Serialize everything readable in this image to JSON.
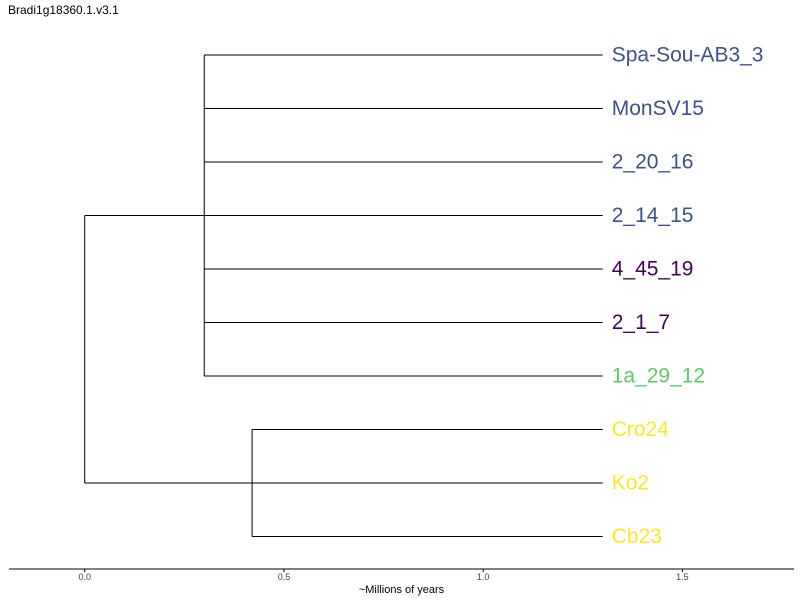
{
  "title": "Bradi1g18360.1.v3.1",
  "tree": {
    "tips": [
      {
        "name": "Spa-Sou-AB3_3",
        "color": "#3b528b"
      },
      {
        "name": "MonSV15",
        "color": "#3b528b"
      },
      {
        "name": "2_20_16",
        "color": "#3b528b"
      },
      {
        "name": "2_14_15",
        "color": "#3b528b"
      },
      {
        "name": "4_45_19",
        "color": "#440154"
      },
      {
        "name": "2_1_7",
        "color": "#440154"
      },
      {
        "name": "1a_29_12",
        "color": "#5ec962"
      },
      {
        "name": "Cro24",
        "color": "#fde725"
      },
      {
        "name": "Ko2",
        "color": "#fde725"
      },
      {
        "name": "Cb23",
        "color": "#fde725"
      }
    ],
    "root_age": 0.0,
    "tip_age": 1.3,
    "clades": [
      {
        "members": [
          0,
          1,
          2,
          3,
          4,
          5,
          6
        ],
        "node_age": 0.3
      },
      {
        "members": [
          7,
          9
        ],
        "node_age": 0.42
      }
    ],
    "root_joins": [
      "clade0",
      "clade1",
      "tip8"
    ]
  },
  "axis": {
    "ticks": [
      {
        "value": 0.0,
        "label": "0.0"
      },
      {
        "value": 0.5,
        "label": "0.5"
      },
      {
        "value": 1.0,
        "label": "1.0"
      },
      {
        "value": 1.5,
        "label": "1.5"
      }
    ],
    "title": "~Millions of years",
    "range": [
      -0.19,
      1.78
    ]
  }
}
